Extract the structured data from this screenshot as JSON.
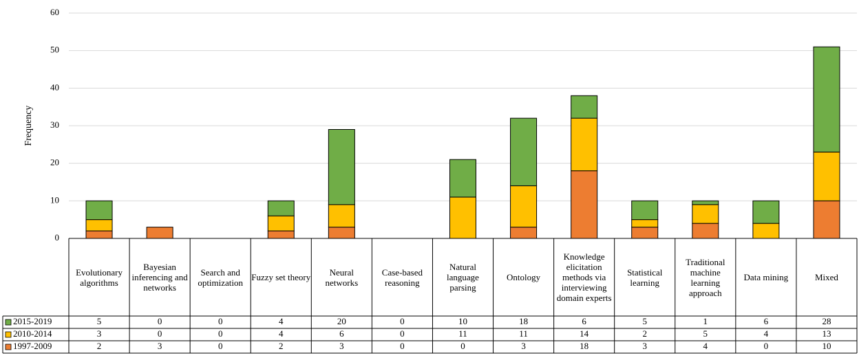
{
  "chart_data": {
    "type": "stacked_bar",
    "y_label": "Frequency",
    "categories": [
      "Evolutionary algorithms",
      "Bayesian inferencing and networks",
      "Search and optimization",
      "Fuzzy set theory",
      "Neural networks",
      "Case-based reasoning",
      "Natural language parsing",
      "Ontology",
      "Knowledge elicitation methods via interviewing domain experts",
      "Statistical learning",
      "Traditional machine learning approach",
      "Data mining",
      "Mixed"
    ],
    "series": [
      {
        "name": "1997-2009",
        "color": "#ED7D31",
        "values": [
          2,
          3,
          0,
          2,
          3,
          0,
          0,
          3,
          18,
          3,
          4,
          0,
          10
        ]
      },
      {
        "name": "2010-2014",
        "color": "#FFC000",
        "values": [
          3,
          0,
          0,
          4,
          6,
          0,
          11,
          11,
          14,
          2,
          5,
          4,
          13
        ]
      },
      {
        "name": "2015-2019",
        "color": "#70AD47",
        "values": [
          5,
          0,
          0,
          4,
          20,
          0,
          10,
          18,
          6,
          5,
          1,
          6,
          28
        ]
      }
    ],
    "ylim": [
      0,
      60
    ],
    "yticks": [
      0,
      10,
      20,
      30,
      40,
      50,
      60
    ],
    "grid": true,
    "data_table": true
  }
}
